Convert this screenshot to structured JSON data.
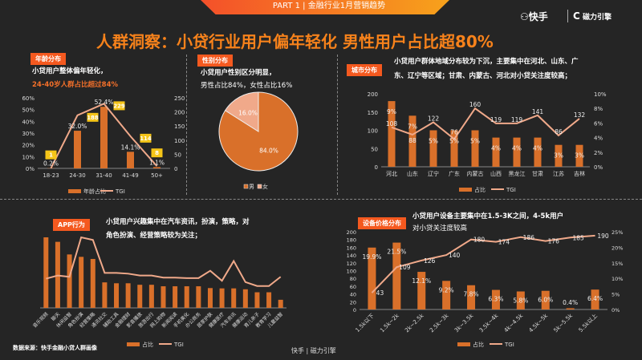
{
  "header": {
    "banner": "PART 1 | 金融行业1月营销趋势",
    "title": "人群洞察：小贷行业用户偏年轻化 男性用户占比超80%",
    "logo_kuaishou": "快手",
    "logo_cili": "磁力引擎"
  },
  "colors": {
    "bar": "#d9702a",
    "line": "#f0a98a",
    "pie_male": "#d9702a",
    "pie_female": "#f0a98a",
    "tag": "#f4591f",
    "title": "#f7821b",
    "label_box": "#f5c518"
  },
  "age": {
    "tag": "年龄分布",
    "desc1": "小贷用户整体偏年轻化，",
    "desc2": "24-40岁人群占比超过84%"
  },
  "gender": {
    "tag": "性别分布",
    "desc1": "小贷用户性别区分明显，",
    "desc2": "男性占比84%，女性占比16%"
  },
  "city": {
    "tag": "城市分布",
    "desc1": "小贷用户群体地域分布较为下沉，主要集中在河北、山东、广",
    "desc2": "东、辽宁等区域；甘肃、内蒙古、河北对小贷关注度较高；"
  },
  "app": {
    "tag": "APP行为",
    "desc1": "小贷用户兴趣集中在汽车资讯，扮演，策略，对",
    "desc2": "角色扮演、经营策略较为关注；"
  },
  "device": {
    "tag": "设备价格分布",
    "desc1": "小贷用户设备主要集中在1.5-3K之间，4-5k用户",
    "desc2": "对小贷关注度较高"
  },
  "footer": {
    "source": "数据来源：快手金融小贷人群画像",
    "logo_kuaishou": "快手",
    "logo_cili": "磁力引擎"
  },
  "chart_data": [
    {
      "id": "age",
      "type": "bar+line",
      "categories": [
        "18-23",
        "24-30",
        "31-40",
        "41-49",
        "50+"
      ],
      "series": [
        {
          "name": "年龄占比",
          "type": "bar",
          "axis": "left",
          "values": [
            0.2,
            32.0,
            52.4,
            14.1,
            1.1
          ],
          "labels": [
            "0.2%",
            "32.0%",
            "52.4%",
            "14.1%",
            "1.1%"
          ]
        },
        {
          "name": "TGI",
          "type": "line",
          "axis": "right",
          "values": [
            1,
            188,
            229,
            114,
            8
          ],
          "labels": [
            "1",
            "188",
            "229",
            "114",
            "8"
          ]
        }
      ],
      "left_ticks": [
        "0%",
        "10%",
        "20%",
        "30%",
        "40%",
        "50%",
        "60%"
      ],
      "right_ticks": [
        "0",
        "50",
        "100",
        "150",
        "200",
        "250"
      ],
      "ylim_left": [
        0,
        60
      ],
      "ylim_right": [
        0,
        250
      ],
      "legend": "bottom"
    },
    {
      "id": "gender",
      "type": "pie",
      "categories": [
        "男",
        "女"
      ],
      "values": [
        84.0,
        16.0
      ],
      "labels": [
        "84.0%",
        "16.0%"
      ],
      "legend": "bottom"
    },
    {
      "id": "city",
      "type": "bar+line",
      "categories": [
        "河北",
        "山东",
        "辽宁",
        "广东",
        "内蒙古",
        "山西",
        "黑龙江",
        "甘肃",
        "江苏",
        "吉林"
      ],
      "series": [
        {
          "name": "占比",
          "type": "bar",
          "axis": "right",
          "values": [
            9,
            7,
            5,
            5,
            5,
            4,
            4,
            4,
            3,
            3
          ],
          "labels": [
            "9%",
            "7%",
            "5%",
            "5%",
            "5%",
            "4%",
            "4%",
            "4%",
            "3%",
            "3%"
          ]
        },
        {
          "name": "TGI",
          "type": "line",
          "axis": "left",
          "values": [
            108,
            88,
            122,
            76,
            160,
            119,
            119,
            141,
            86,
            132
          ],
          "labels": [
            "108",
            "88",
            "122",
            "76",
            "160",
            "119",
            "119",
            "141",
            "86",
            "132"
          ]
        }
      ],
      "left_ticks": [
        "0",
        "50",
        "100",
        "150",
        "200"
      ],
      "right_ticks": [
        "0%",
        "2%",
        "4%",
        "6%",
        "8%",
        "10%"
      ],
      "ylim_left": [
        0,
        200
      ],
      "ylim_right": [
        0,
        10
      ],
      "legend": "bottom"
    },
    {
      "id": "app",
      "type": "bar+line",
      "categories": [
        "音乐视频",
        "聊天",
        "休闲益智",
        "角色扮演",
        "经营策略",
        "通讯社交",
        "辅助工具",
        "金融理财",
        "影音播放",
        "旅游出行",
        "网上购物",
        "新闻阅读",
        "手机美化",
        "办公商务",
        "居家护肤",
        "健康医疗",
        "汽车资讯",
        "健康运动",
        "育儿亲子",
        "教育学习",
        "儿童益智"
      ],
      "series": [
        {
          "name": "占比",
          "type": "bar",
          "values": [
            235,
            220,
            178,
            170,
            163,
            85,
            82,
            82,
            77,
            77,
            72,
            72,
            72,
            72,
            66,
            65,
            65,
            62,
            52,
            52,
            27
          ]
        },
        {
          "name": "TGI",
          "type": "line",
          "values": [
            111,
            123,
            118,
            268,
            258,
            133,
            133,
            130,
            123,
            123,
            115,
            115,
            113,
            113,
            141,
            103,
            178,
            98,
            83,
            83,
            118
          ]
        }
      ],
      "legend": "bottom"
    },
    {
      "id": "device",
      "type": "bar+line",
      "categories": [
        "1.5k以下",
        "1.5k~2k",
        "2k~2.5k",
        "2.5k~3k",
        "3k~3.5k",
        "3.5k~4k",
        "4k~4.5k",
        "4.5k~5k",
        "5k~5.5k",
        "5.5k以上"
      ],
      "series": [
        {
          "name": "占比",
          "type": "bar",
          "axis": "right",
          "values": [
            19.9,
            21.5,
            12.1,
            9.2,
            7.8,
            6.3,
            5.8,
            6.0,
            0.4,
            6.4
          ],
          "labels": [
            "19.9%",
            "21.5%",
            "12.1%",
            "9.2%",
            "7.8%",
            "6.3%",
            "5.8%",
            "6.0%",
            "0.4%",
            "6.4%"
          ]
        },
        {
          "name": "TGI",
          "type": "line",
          "axis": "left",
          "values": [
            43,
            109,
            126,
            140,
            180,
            174,
            186,
            176,
            185,
            190
          ],
          "labels": [
            "43",
            "109",
            "126",
            "140",
            "180",
            "174",
            "186",
            "176",
            "185",
            "190"
          ]
        }
      ],
      "left_ticks": [
        "0",
        "20",
        "40",
        "60",
        "80",
        "100",
        "120",
        "140",
        "160",
        "180",
        "200"
      ],
      "right_ticks": [
        "0%",
        "5%",
        "10%",
        "15%",
        "20%",
        "25%"
      ],
      "ylim_left": [
        0,
        200
      ],
      "ylim_right": [
        0,
        25
      ],
      "legend": "bottom"
    }
  ]
}
